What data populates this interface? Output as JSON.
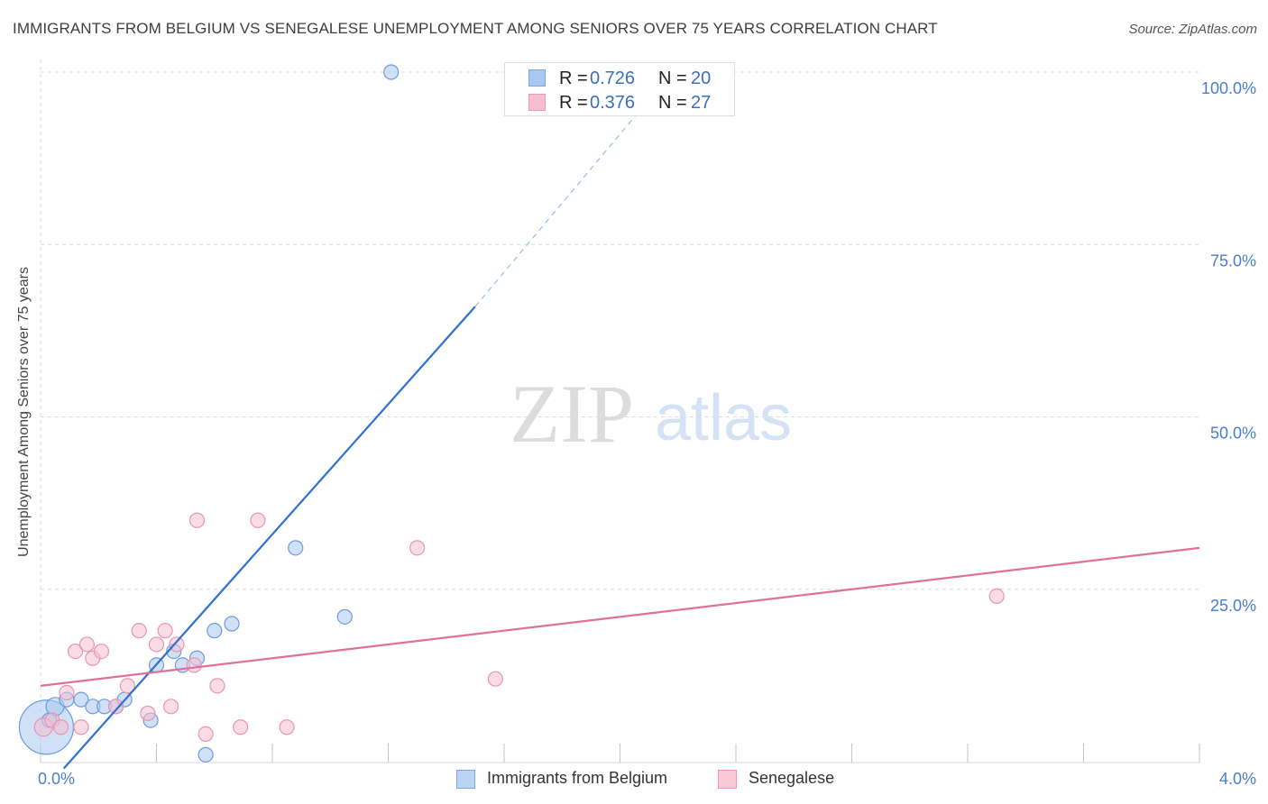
{
  "title": "IMMIGRANTS FROM BELGIUM VS SENEGALESE UNEMPLOYMENT AMONG SENIORS OVER 75 YEARS CORRELATION CHART",
  "source": "Source: ZipAtlas.com",
  "watermark": {
    "zip": "ZIP",
    "atlas": "atlas"
  },
  "legend": [
    {
      "r_label": "R =",
      "r_value": "0.726",
      "n_label": "N =",
      "n_value": "20",
      "color": "#a9c8f0",
      "border": "#7aa6df"
    },
    {
      "r_label": "R =",
      "r_value": "0.376",
      "n_label": "N =",
      "n_value": "27",
      "color": "#f6bfd1",
      "border": "#ec97b3"
    }
  ],
  "bottom_legend": [
    {
      "label": "Immigrants from Belgium",
      "color": "#bcd3f2",
      "border": "#7aa6df"
    },
    {
      "label": "Senegalese",
      "color": "#f9c9d8",
      "border": "#ec97b3"
    }
  ],
  "colors": {
    "blue_fill": "#a9c8f0",
    "blue_stroke": "#6d9bd9",
    "blue_line": "#2f6fd0",
    "pink_fill": "#f6bfd1",
    "pink_stroke": "#e895b1",
    "pink_line": "#e0709a",
    "grid": "#d9d9d9",
    "axis": "#bbbbbb",
    "tick_text": "#4a7fc7"
  },
  "chart_data": {
    "type": "scatter",
    "title": "IMMIGRANTS FROM BELGIUM VS SENEGALESE UNEMPLOYMENT AMONG SENIORS OVER 75 YEARS CORRELATION CHART",
    "xlabel": "",
    "ylabel": "Unemployment Among Seniors over 75 years",
    "xlim": [
      0,
      4
    ],
    "ylim": [
      0,
      100
    ],
    "x_tick_labels": [
      "0.0%",
      "4.0%"
    ],
    "y_ticks": [
      25,
      50,
      75,
      100
    ],
    "y_tick_labels": [
      "25.0%",
      "50.0%",
      "75.0%",
      "100.0%"
    ],
    "grid": true,
    "legend_position": "top-center",
    "series": [
      {
        "name": "Immigrants from Belgium",
        "color": "#a9c8f0",
        "r": 0.726,
        "n": 20,
        "trend": {
          "x": [
            0.08,
            1.5
          ],
          "y": [
            -1,
            66
          ],
          "dashed_to": [
            2.1,
            96
          ]
        },
        "points": [
          {
            "x": 0.02,
            "y": 5,
            "size": 30
          },
          {
            "x": 0.05,
            "y": 8,
            "size": 10
          },
          {
            "x": 0.09,
            "y": 9,
            "size": 8
          },
          {
            "x": 0.14,
            "y": 9,
            "size": 8
          },
          {
            "x": 0.18,
            "y": 8,
            "size": 8
          },
          {
            "x": 0.22,
            "y": 8,
            "size": 8
          },
          {
            "x": 0.26,
            "y": 8,
            "size": 8
          },
          {
            "x": 0.29,
            "y": 9,
            "size": 8
          },
          {
            "x": 0.38,
            "y": 6,
            "size": 8
          },
          {
            "x": 0.4,
            "y": 14,
            "size": 8
          },
          {
            "x": 0.46,
            "y": 16,
            "size": 8
          },
          {
            "x": 0.49,
            "y": 14,
            "size": 8
          },
          {
            "x": 0.54,
            "y": 15,
            "size": 8
          },
          {
            "x": 0.57,
            "y": 1,
            "size": 8
          },
          {
            "x": 0.6,
            "y": 19,
            "size": 8
          },
          {
            "x": 0.66,
            "y": 20,
            "size": 8
          },
          {
            "x": 0.88,
            "y": 31,
            "size": 8
          },
          {
            "x": 1.05,
            "y": 21,
            "size": 8
          },
          {
            "x": 1.21,
            "y": 100,
            "size": 8
          },
          {
            "x": 0.03,
            "y": 6,
            "size": 8
          }
        ]
      },
      {
        "name": "Senegalese",
        "color": "#f6bfd1",
        "r": 0.376,
        "n": 27,
        "trend": {
          "x": [
            0,
            4
          ],
          "y": [
            11,
            31
          ]
        },
        "points": [
          {
            "x": 0.01,
            "y": 5,
            "size": 10
          },
          {
            "x": 0.04,
            "y": 6,
            "size": 8
          },
          {
            "x": 0.07,
            "y": 5,
            "size": 8
          },
          {
            "x": 0.09,
            "y": 10,
            "size": 8
          },
          {
            "x": 0.12,
            "y": 16,
            "size": 8
          },
          {
            "x": 0.14,
            "y": 5,
            "size": 8
          },
          {
            "x": 0.16,
            "y": 17,
            "size": 8
          },
          {
            "x": 0.18,
            "y": 15,
            "size": 8
          },
          {
            "x": 0.21,
            "y": 16,
            "size": 8
          },
          {
            "x": 0.26,
            "y": 8,
            "size": 8
          },
          {
            "x": 0.3,
            "y": 11,
            "size": 8
          },
          {
            "x": 0.34,
            "y": 19,
            "size": 8
          },
          {
            "x": 0.37,
            "y": 7,
            "size": 8
          },
          {
            "x": 0.4,
            "y": 17,
            "size": 8
          },
          {
            "x": 0.43,
            "y": 19,
            "size": 8
          },
          {
            "x": 0.45,
            "y": 8,
            "size": 8
          },
          {
            "x": 0.47,
            "y": 17,
            "size": 8
          },
          {
            "x": 0.53,
            "y": 14,
            "size": 8
          },
          {
            "x": 0.54,
            "y": 35,
            "size": 8
          },
          {
            "x": 0.57,
            "y": 4,
            "size": 8
          },
          {
            "x": 0.61,
            "y": 11,
            "size": 8
          },
          {
            "x": 0.69,
            "y": 5,
            "size": 8
          },
          {
            "x": 0.75,
            "y": 35,
            "size": 8
          },
          {
            "x": 0.85,
            "y": 5,
            "size": 8
          },
          {
            "x": 1.3,
            "y": 31,
            "size": 8
          },
          {
            "x": 1.57,
            "y": 12,
            "size": 8
          },
          {
            "x": 3.3,
            "y": 24,
            "size": 8
          }
        ]
      }
    ]
  }
}
